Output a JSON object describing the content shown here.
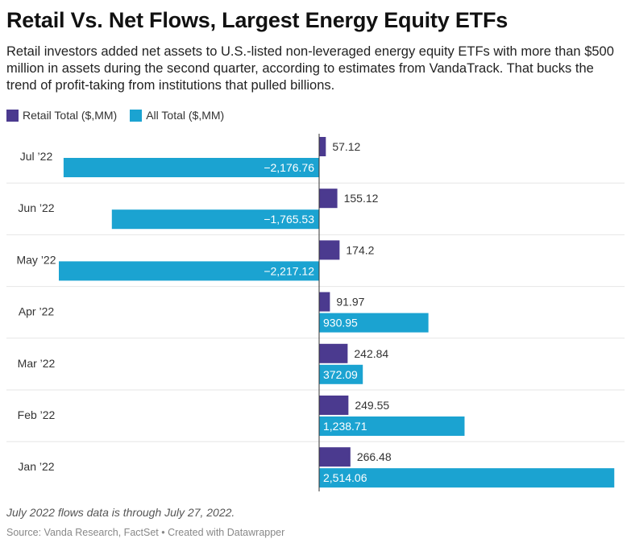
{
  "title": "Retail Vs. Net Flows, Largest Energy Equity ETFs",
  "subtitle": "Retail investors added net assets to U.S.-listed non-leveraged energy equity ETFs with more than $500 million in assets during the second quarter, according to estimates from VandaTrack. That bucks the trend of profit-taking from institutions that pulled billions.",
  "legend": [
    {
      "label": "Retail Total ($,MM)",
      "color": "#4b3a8f"
    },
    {
      "label": "All Total ($,MM)",
      "color": "#1ba3d1"
    }
  ],
  "notes": "July 2022 flows data is through July 27, 2022.",
  "source": "Source: Vanda Research, FactSet • Created with Datawrapper",
  "chart_data": {
    "type": "bar",
    "orientation": "horizontal",
    "title": "Retail Vs. Net Flows, Largest Energy Equity ETFs",
    "categories": [
      "Jul ’22",
      "Jun ’22",
      "May ’22",
      "Apr ’22",
      "Mar ’22",
      "Feb ’22",
      "Jan ’22"
    ],
    "series": [
      {
        "name": "Retail Total ($,MM)",
        "color": "#4b3a8f",
        "values": [
          57.12,
          155.12,
          174.2,
          91.97,
          242.84,
          249.55,
          266.48
        ],
        "labels": [
          "57.12",
          "155.12",
          "174.2",
          "91.97",
          "242.84",
          "249.55",
          "266.48"
        ]
      },
      {
        "name": "All Total ($,MM)",
        "color": "#1ba3d1",
        "values": [
          -2176.76,
          -1765.53,
          -2217.12,
          930.95,
          372.09,
          1238.71,
          2514.06
        ],
        "labels": [
          "−2,176.76",
          "−1,765.53",
          "−2,217.12",
          "930.95",
          "372.09",
          "1,238.71",
          "2,514.06"
        ]
      }
    ],
    "xlim": [
      -2217.12,
      2514.06
    ],
    "grid": false
  }
}
